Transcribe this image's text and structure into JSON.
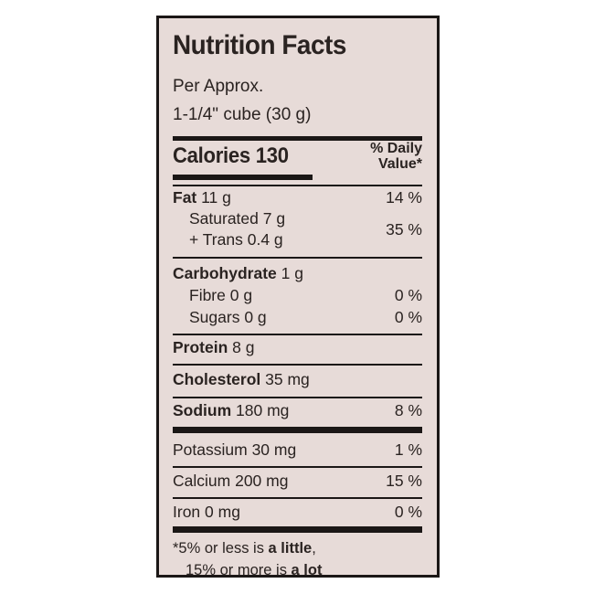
{
  "title": "Nutrition Facts",
  "serving": {
    "line1": "Per Approx.",
    "line2": "1-1/4\" cube (30 g)"
  },
  "calories": {
    "label": "Calories 130"
  },
  "daily_value_header": {
    "line1": "% Daily",
    "line2": "Value*"
  },
  "nutrients": {
    "fat": {
      "name": "Fat",
      "amount": "11 g",
      "dv": "14 %"
    },
    "saturated": {
      "name": "Saturated",
      "amount": "7 g"
    },
    "trans": {
      "name": "+ Trans",
      "amount": "0.4 g",
      "dv": "35 %"
    },
    "carbohydrate": {
      "name": "Carbohydrate",
      "amount": "1 g"
    },
    "fibre": {
      "name": "Fibre",
      "amount": "0 g",
      "dv": "0 %"
    },
    "sugars": {
      "name": "Sugars",
      "amount": "0 g",
      "dv": "0 %"
    },
    "protein": {
      "name": "Protein",
      "amount": "8 g"
    },
    "cholesterol": {
      "name": "Cholesterol",
      "amount": "35 mg"
    },
    "sodium": {
      "name": "Sodium",
      "amount": "180 mg",
      "dv": "8 %"
    },
    "potassium": {
      "name": "Potassium",
      "amount": "30 mg",
      "dv": "1 %"
    },
    "calcium": {
      "name": "Calcium",
      "amount": "200 mg",
      "dv": "15 %"
    },
    "iron": {
      "name": "Iron",
      "amount": "0 mg",
      "dv": "0 %"
    }
  },
  "footnote": {
    "part1": "*5% or less is ",
    "part2": "a little",
    "part3": ",",
    "part4": "15% or more is ",
    "part5": "a lot"
  },
  "colors": {
    "panel": "#e7dbd8",
    "ink": "#2a2321",
    "border": "#1b1716"
  }
}
